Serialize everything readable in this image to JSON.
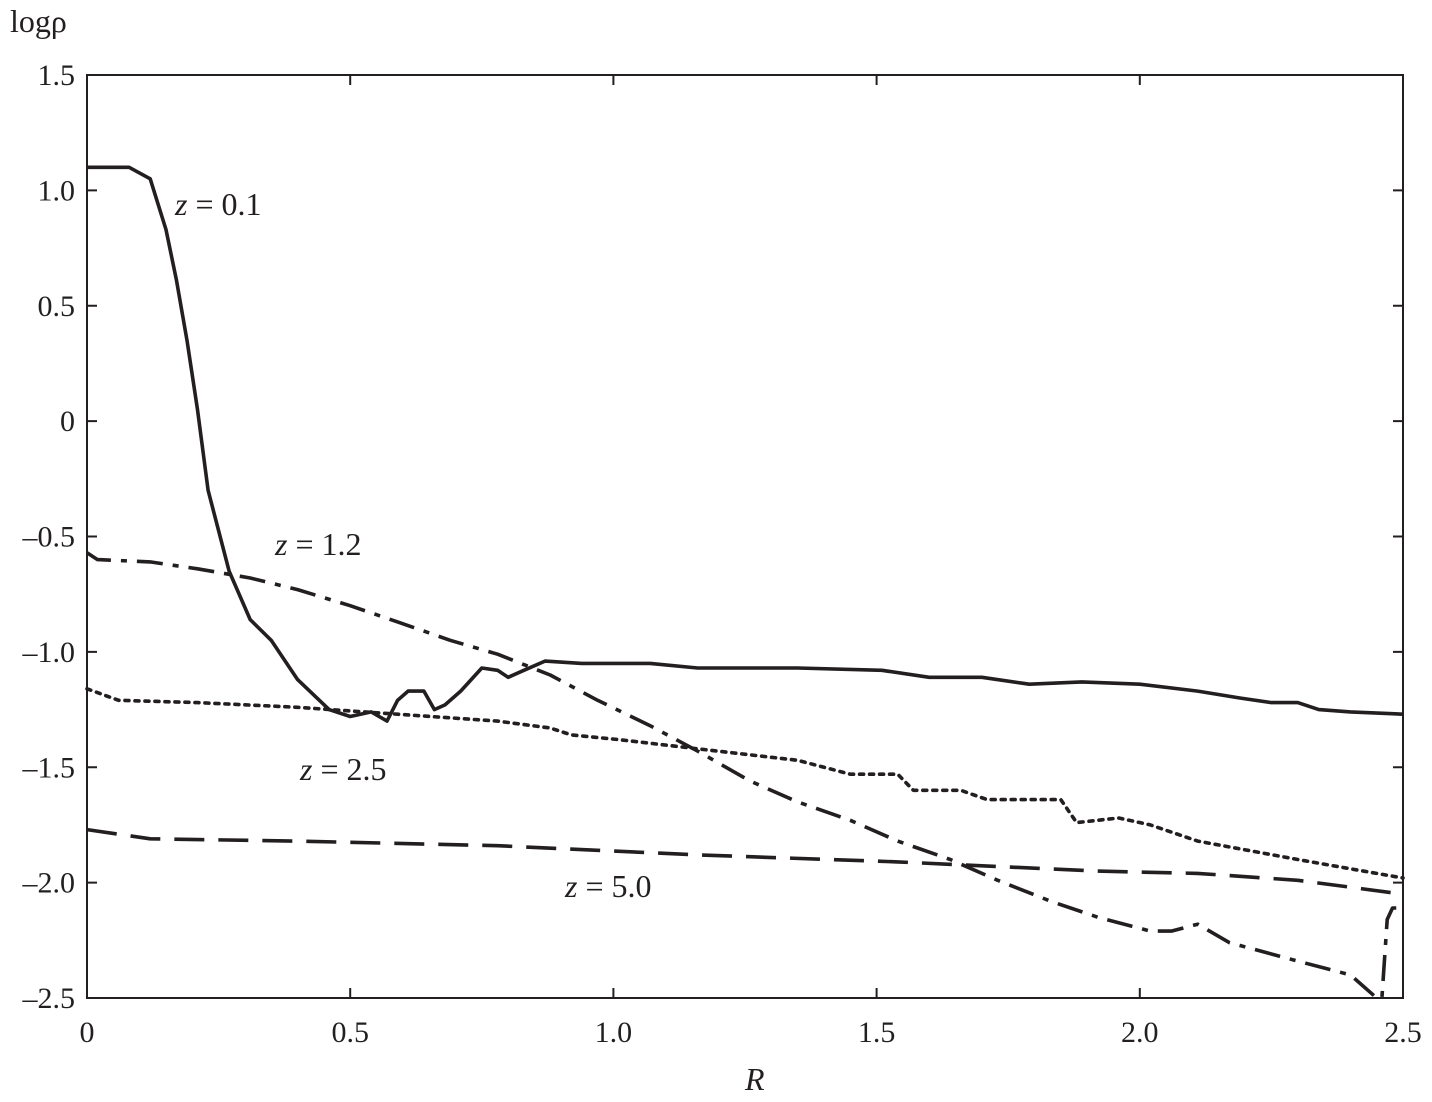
{
  "chart_data": {
    "type": "line",
    "title": "",
    "xlabel": "R",
    "ylabel": "logρ",
    "xlim": [
      0,
      2.5
    ],
    "ylim": [
      -2.5,
      1.5
    ],
    "xticks": [
      "0",
      "0.5",
      "1.0",
      "1.5",
      "2.0",
      "2.5"
    ],
    "yticks": [
      "1.5",
      "1.0",
      "0.5",
      "0",
      "–0.5",
      "–1.0",
      "–1.5",
      "–2.0",
      "–2.5"
    ],
    "grid": false,
    "legend": "none",
    "series": [
      {
        "name": "z = 0.1",
        "style": "solid",
        "x": [
          0,
          0.08,
          0.12,
          0.15,
          0.17,
          0.19,
          0.21,
          0.23,
          0.27,
          0.31,
          0.35,
          0.4,
          0.46,
          0.5,
          0.54,
          0.57,
          0.59,
          0.61,
          0.64,
          0.66,
          0.68,
          0.71,
          0.75,
          0.78,
          0.8,
          0.83,
          0.87,
          0.94,
          1.07,
          1.16,
          1.35,
          1.51,
          1.6,
          1.7,
          1.79,
          1.89,
          2.0,
          2.11,
          2.19,
          2.25,
          2.3,
          2.34,
          2.4,
          2.5
        ],
        "y": [
          1.1,
          1.1,
          1.05,
          0.83,
          0.61,
          0.35,
          0.05,
          -0.3,
          -0.65,
          -0.86,
          -0.95,
          -1.12,
          -1.25,
          -1.28,
          -1.26,
          -1.3,
          -1.21,
          -1.17,
          -1.17,
          -1.25,
          -1.23,
          -1.17,
          -1.07,
          -1.08,
          -1.11,
          -1.08,
          -1.04,
          -1.05,
          -1.05,
          -1.07,
          -1.07,
          -1.08,
          -1.11,
          -1.11,
          -1.14,
          -1.13,
          -1.14,
          -1.17,
          -1.2,
          -1.22,
          -1.22,
          -1.25,
          -1.26,
          -1.27
        ]
      },
      {
        "name": "z = 1.2",
        "style": "dash-dot",
        "x": [
          0,
          0.02,
          0.12,
          0.21,
          0.31,
          0.4,
          0.5,
          0.59,
          0.69,
          0.78,
          0.88,
          0.97,
          1.07,
          1.16,
          1.26,
          1.35,
          1.45,
          1.54,
          1.64,
          1.73,
          1.83,
          1.92,
          2.02,
          2.06,
          2.11,
          2.17,
          2.3,
          2.4,
          2.45,
          2.46,
          2.47,
          2.48,
          2.5
        ],
        "y": [
          -0.57,
          -0.6,
          -0.61,
          -0.64,
          -0.68,
          -0.73,
          -0.8,
          -0.87,
          -0.95,
          -1.01,
          -1.1,
          -1.21,
          -1.32,
          -1.43,
          -1.56,
          -1.65,
          -1.73,
          -1.82,
          -1.9,
          -1.99,
          -2.08,
          -2.15,
          -2.21,
          -2.21,
          -2.18,
          -2.26,
          -2.34,
          -2.4,
          -2.5,
          -2.5,
          -2.16,
          -2.11,
          -2.11
        ]
      },
      {
        "name": "z = 2.5",
        "style": "dotted",
        "x": [
          0,
          0.06,
          0.21,
          0.4,
          0.59,
          0.78,
          0.88,
          0.92,
          1.01,
          1.16,
          1.35,
          1.45,
          1.54,
          1.57,
          1.66,
          1.71,
          1.85,
          1.88,
          1.96,
          2.02,
          2.11,
          2.3,
          2.4,
          2.5
        ],
        "y": [
          -1.16,
          -1.21,
          -1.22,
          -1.24,
          -1.27,
          -1.3,
          -1.33,
          -1.36,
          -1.38,
          -1.42,
          -1.47,
          -1.53,
          -1.53,
          -1.6,
          -1.6,
          -1.64,
          -1.64,
          -1.74,
          -1.72,
          -1.75,
          -1.82,
          -1.9,
          -1.94,
          -1.98
        ]
      },
      {
        "name": "z = 5.0",
        "style": "dashed",
        "x": [
          0,
          0.12,
          0.4,
          0.78,
          1.16,
          1.54,
          1.73,
          1.92,
          2.11,
          2.3,
          2.4,
          2.5
        ],
        "y": [
          -1.77,
          -1.81,
          -1.82,
          -1.84,
          -1.88,
          -1.91,
          -1.93,
          -1.95,
          -1.96,
          -1.99,
          -2.02,
          -2.05
        ]
      }
    ]
  }
}
